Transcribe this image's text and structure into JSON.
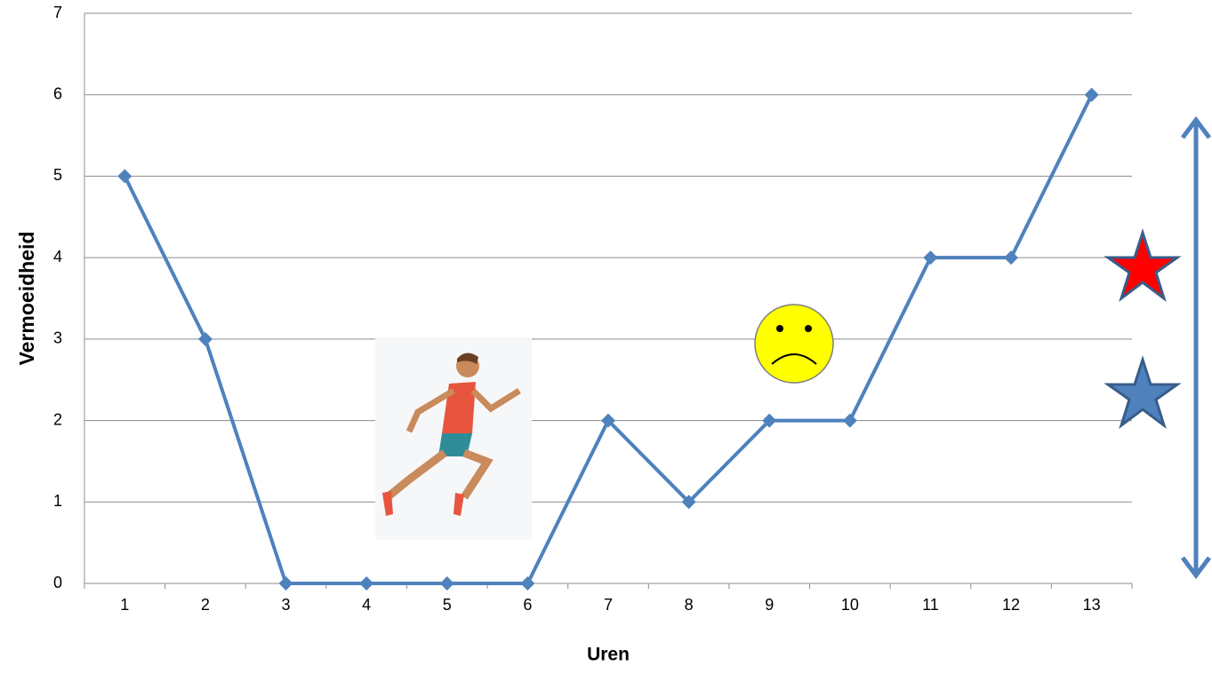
{
  "chart_data": {
    "type": "line",
    "x_label": "Uren",
    "y_label": "Vermoeidheid",
    "categories": [
      "1",
      "2",
      "3",
      "4",
      "5",
      "6",
      "7",
      "8",
      "9",
      "10",
      "11",
      "12",
      "13"
    ],
    "values": [
      5,
      3,
      0,
      0,
      0,
      0,
      2,
      1,
      2,
      2,
      4,
      4,
      6
    ],
    "color": "#4f81bd",
    "ylim": [
      0,
      7
    ],
    "yticks": [
      0,
      1,
      2,
      3,
      4,
      5,
      6,
      7
    ],
    "grid": true
  }
}
